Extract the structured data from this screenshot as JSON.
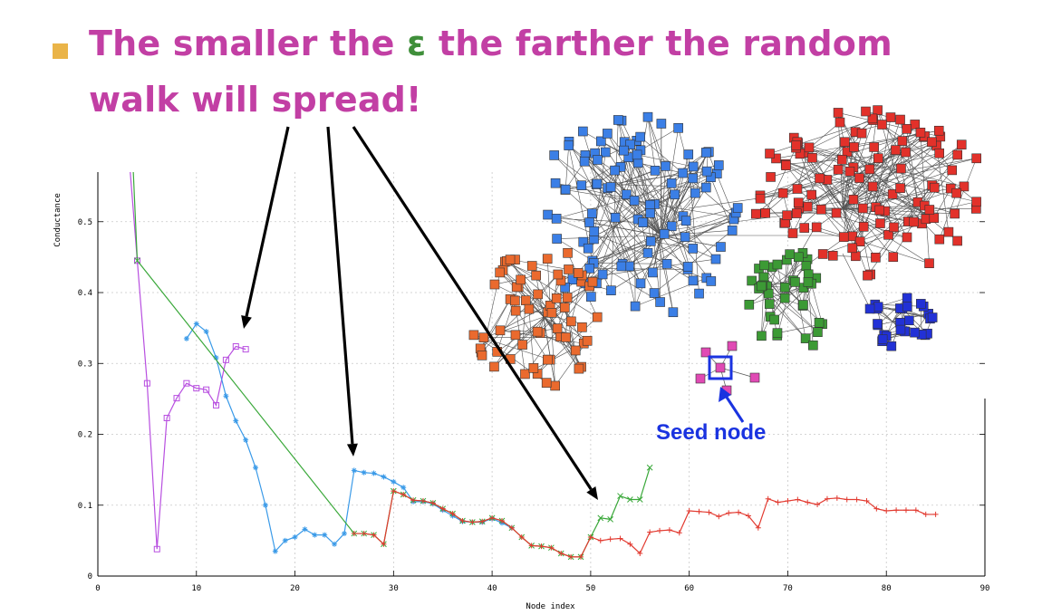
{
  "slide": {
    "title_line1_prefix": "The smaller the ",
    "title_epsilon": "ε",
    "title_line1_suffix": " the farther the random",
    "title_line2": "walk will spread!",
    "title_color": "#c23fa4",
    "epsilon_color": "#3f8f3a",
    "bullet_color": "#eab448"
  },
  "inset": {
    "seed_label": "Seed node",
    "seed_label_color": "#1a33e0",
    "cluster_colors": [
      "#3b7fe6",
      "#e2312a",
      "#ea6a2e",
      "#3c9a35",
      "#2231d6",
      "#e04ab4"
    ]
  },
  "chart_data": {
    "type": "line",
    "title": "",
    "xlabel": "Node index",
    "ylabel": "Conductance",
    "xlim": [
      0,
      90
    ],
    "ylim": [
      0,
      0.57
    ],
    "xticks": [
      0,
      10,
      20,
      30,
      40,
      50,
      60,
      70,
      80,
      90
    ],
    "yticks": [
      0,
      0.1,
      0.2,
      0.3,
      0.4,
      0.5
    ],
    "grid": true,
    "series": [
      {
        "name": "purple",
        "color": "#b84fe0",
        "marker": "square",
        "x": [
          3,
          4,
          5,
          6,
          7,
          8,
          9,
          10,
          11,
          12,
          13,
          14,
          15
        ],
        "y": [
          0.62,
          0.445,
          0.272,
          0.038,
          0.223,
          0.251,
          0.272,
          0.265,
          0.263,
          0.241,
          0.305,
          0.324,
          0.32
        ]
      },
      {
        "name": "blue",
        "color": "#3a9ae8",
        "marker": "star",
        "x": [
          9,
          10,
          11,
          12,
          13,
          14,
          15,
          16,
          17,
          18,
          19,
          20,
          21,
          22,
          23,
          24,
          25,
          26,
          27,
          28,
          29,
          30,
          31,
          32,
          33,
          34,
          35,
          36,
          37,
          38,
          39,
          40,
          41,
          42
        ],
        "y": [
          0.335,
          0.356,
          0.345,
          0.308,
          0.254,
          0.219,
          0.192,
          0.153,
          0.1,
          0.035,
          0.05,
          0.055,
          0.066,
          0.058,
          0.058,
          0.045,
          0.06,
          0.149,
          0.146,
          0.145,
          0.14,
          0.133,
          0.125,
          0.105,
          0.105,
          0.102,
          0.093,
          0.085,
          0.077,
          0.076,
          0.076,
          0.081,
          0.075,
          0.068
        ]
      },
      {
        "name": "green",
        "color": "#3aa83a",
        "marker": "x",
        "x": [
          3.5,
          4,
          26,
          27,
          28,
          29,
          30,
          31,
          32,
          33,
          34,
          35,
          36,
          37,
          38,
          39,
          40,
          41,
          42,
          43,
          44,
          45,
          46,
          47,
          48,
          49,
          50,
          51,
          52,
          53,
          54,
          55,
          56
        ],
        "y": [
          0.6,
          0.445,
          0.06,
          0.06,
          0.058,
          0.045,
          0.12,
          0.115,
          0.107,
          0.106,
          0.103,
          0.095,
          0.088,
          0.078,
          0.076,
          0.077,
          0.082,
          0.078,
          0.068,
          0.055,
          0.043,
          0.042,
          0.04,
          0.032,
          0.027,
          0.027,
          0.055,
          0.082,
          0.08,
          0.113,
          0.108,
          0.108,
          0.153
        ]
      },
      {
        "name": "red",
        "color": "#e23a30",
        "marker": "plus",
        "x": [
          26,
          27,
          28,
          29,
          30,
          31,
          32,
          33,
          34,
          35,
          36,
          37,
          38,
          39,
          40,
          41,
          42,
          43,
          44,
          45,
          46,
          47,
          48,
          49,
          50,
          51,
          52,
          53,
          54,
          55,
          56,
          57,
          58,
          59,
          60,
          61,
          62,
          63,
          64,
          65,
          66,
          67,
          68,
          69,
          70,
          71,
          72,
          73,
          74,
          75,
          76,
          77,
          78,
          79,
          80,
          81,
          82,
          83,
          84,
          85
        ],
        "y": [
          0.06,
          0.06,
          0.058,
          0.045,
          0.12,
          0.115,
          0.107,
          0.106,
          0.103,
          0.095,
          0.088,
          0.078,
          0.076,
          0.077,
          0.082,
          0.078,
          0.068,
          0.055,
          0.043,
          0.042,
          0.04,
          0.032,
          0.027,
          0.027,
          0.055,
          0.05,
          0.052,
          0.053,
          0.045,
          0.032,
          0.062,
          0.064,
          0.065,
          0.061,
          0.092,
          0.091,
          0.09,
          0.084,
          0.089,
          0.09,
          0.085,
          0.068,
          0.109,
          0.104,
          0.106,
          0.108,
          0.104,
          0.101,
          0.109,
          0.11,
          0.108,
          0.108,
          0.106,
          0.095,
          0.092,
          0.093,
          0.093,
          0.093,
          0.087,
          0.087
        ]
      }
    ]
  }
}
